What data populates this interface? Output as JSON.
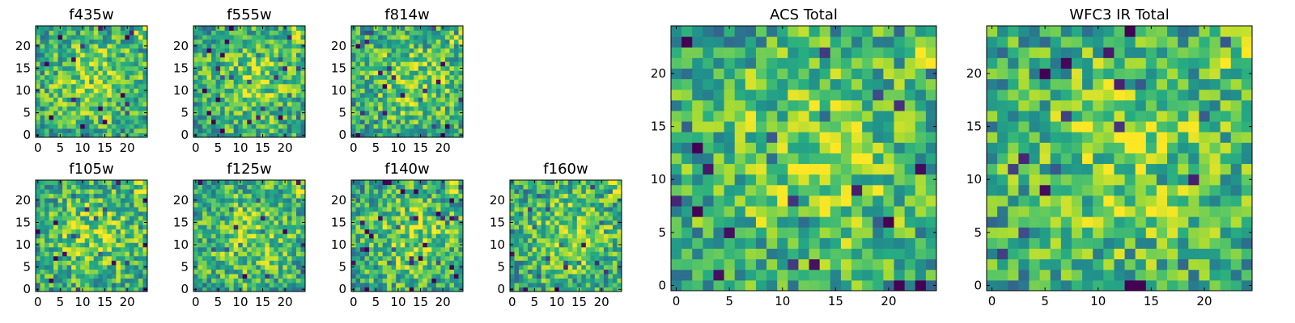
{
  "figure": {
    "description_free": true
  },
  "chart_data": [
    {
      "type": "heatmap",
      "title": "f435w",
      "grid_size": 25,
      "x_ticks": [
        "0",
        "5",
        "10",
        "15",
        "20"
      ],
      "y_ticks": [
        "0",
        "5",
        "10",
        "15",
        "20"
      ],
      "colormap": "viridis",
      "seed": 11
    },
    {
      "type": "heatmap",
      "title": "f555w",
      "grid_size": 25,
      "x_ticks": [
        "0",
        "5",
        "10",
        "15",
        "20"
      ],
      "y_ticks": [
        "0",
        "5",
        "10",
        "15",
        "20"
      ],
      "colormap": "viridis",
      "seed": 23
    },
    {
      "type": "heatmap",
      "title": "f814w",
      "grid_size": 25,
      "x_ticks": [
        "0",
        "5",
        "10",
        "15",
        "20"
      ],
      "y_ticks": [
        "0",
        "5",
        "10",
        "15",
        "20"
      ],
      "colormap": "viridis",
      "seed": 37
    },
    {
      "type": "heatmap",
      "title": "f105w",
      "grid_size": 25,
      "x_ticks": [
        "0",
        "5",
        "10",
        "15",
        "20"
      ],
      "y_ticks": [
        "0",
        "5",
        "10",
        "15",
        "20"
      ],
      "colormap": "viridis",
      "seed": 41
    },
    {
      "type": "heatmap",
      "title": "f125w",
      "grid_size": 25,
      "x_ticks": [
        "0",
        "5",
        "10",
        "15",
        "20"
      ],
      "y_ticks": [
        "0",
        "5",
        "10",
        "15",
        "20"
      ],
      "colormap": "viridis",
      "seed": 53
    },
    {
      "type": "heatmap",
      "title": "f140w",
      "grid_size": 25,
      "x_ticks": [
        "0",
        "5",
        "10",
        "15",
        "20"
      ],
      "y_ticks": [
        "0",
        "5",
        "10",
        "15",
        "20"
      ],
      "colormap": "viridis",
      "seed": 67
    },
    {
      "type": "heatmap",
      "title": "f160w",
      "grid_size": 25,
      "x_ticks": [
        "0",
        "5",
        "10",
        "15",
        "20"
      ],
      "y_ticks": [
        "0",
        "5",
        "10",
        "15",
        "20"
      ],
      "colormap": "viridis",
      "seed": 79
    },
    {
      "type": "heatmap",
      "title": "ACS Total",
      "grid_size": 25,
      "x_ticks": [
        "0",
        "5",
        "10",
        "15",
        "20"
      ],
      "y_ticks": [
        "0",
        "5",
        "10",
        "15",
        "20"
      ],
      "colormap": "viridis",
      "seed": 83
    },
    {
      "type": "heatmap",
      "title": "WFC3 IR Total",
      "grid_size": 25,
      "x_ticks": [
        "0",
        "5",
        "10",
        "15",
        "20"
      ],
      "y_ticks": [
        "0",
        "5",
        "10",
        "15",
        "20"
      ],
      "colormap": "viridis",
      "seed": 97
    }
  ]
}
